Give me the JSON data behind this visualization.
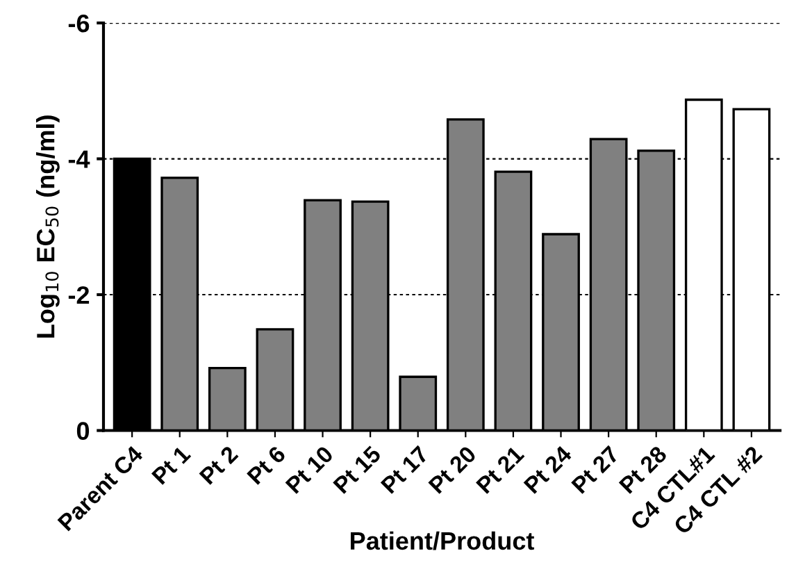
{
  "chart_data": {
    "type": "bar",
    "xlabel": "Patient/Product",
    "ylabel": "Log$_{10}$ EC$_{50}$ (ng/ml)",
    "categories": [
      "Parent C4",
      "Pt 1",
      "Pt 2",
      "Pt 6",
      "Pt 10",
      "Pt 15",
      "Pt 17",
      "Pt 20",
      "Pt 21",
      "Pt 24",
      "Pt 27",
      "Pt 28",
      "C4 CTL#1",
      "C4 CTL #2"
    ],
    "values": [
      -4.0,
      -3.72,
      -0.92,
      -1.49,
      -3.39,
      -3.37,
      -0.79,
      -4.58,
      -3.81,
      -2.89,
      -4.29,
      -4.12,
      -4.87,
      -4.73
    ],
    "colors": [
      "#000000",
      "#808080",
      "#808080",
      "#808080",
      "#808080",
      "#808080",
      "#808080",
      "#808080",
      "#808080",
      "#808080",
      "#808080",
      "#808080",
      "#ffffff",
      "#ffffff"
    ],
    "ylim": [
      0,
      -6
    ],
    "yticks": [
      0,
      -2,
      -4,
      -6
    ],
    "grid": "y",
    "legend": false
  }
}
